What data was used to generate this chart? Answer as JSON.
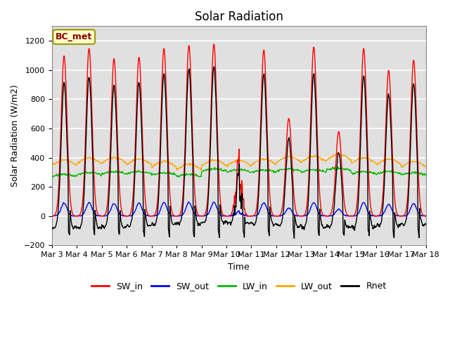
{
  "title": "Solar Radiation",
  "xlabel": "Time",
  "ylabel": "Solar Radiation (W/m2)",
  "ylim": [
    -200,
    1300
  ],
  "yticks": [
    -200,
    0,
    200,
    400,
    600,
    800,
    1000,
    1200
  ],
  "xlim": [
    0,
    15
  ],
  "xtick_labels": [
    "Mar 3",
    "Mar 4",
    "Mar 5",
    "Mar 6",
    "Mar 7",
    "Mar 8",
    "Mar 9",
    "Mar 10",
    "Mar 11",
    "Mar 12",
    "Mar 13",
    "Mar 14",
    "Mar 15",
    "Mar 16",
    "Mar 17",
    "Mar 18"
  ],
  "xtick_positions": [
    0,
    1,
    2,
    3,
    4,
    5,
    6,
    7,
    8,
    9,
    10,
    11,
    12,
    13,
    14,
    15
  ],
  "colors": {
    "SW_in": "#ff0000",
    "SW_out": "#0000ff",
    "LW_in": "#00bb00",
    "LW_out": "#ffa500",
    "Rnet": "#000000"
  },
  "annotation_text": "BC_met",
  "background_color": "#ffffff",
  "plot_bg_color": "#e0e0e0",
  "grid_color": "#ffffff",
  "linewidth": 1.0,
  "title_fontsize": 12,
  "label_fontsize": 9,
  "tick_fontsize": 8
}
